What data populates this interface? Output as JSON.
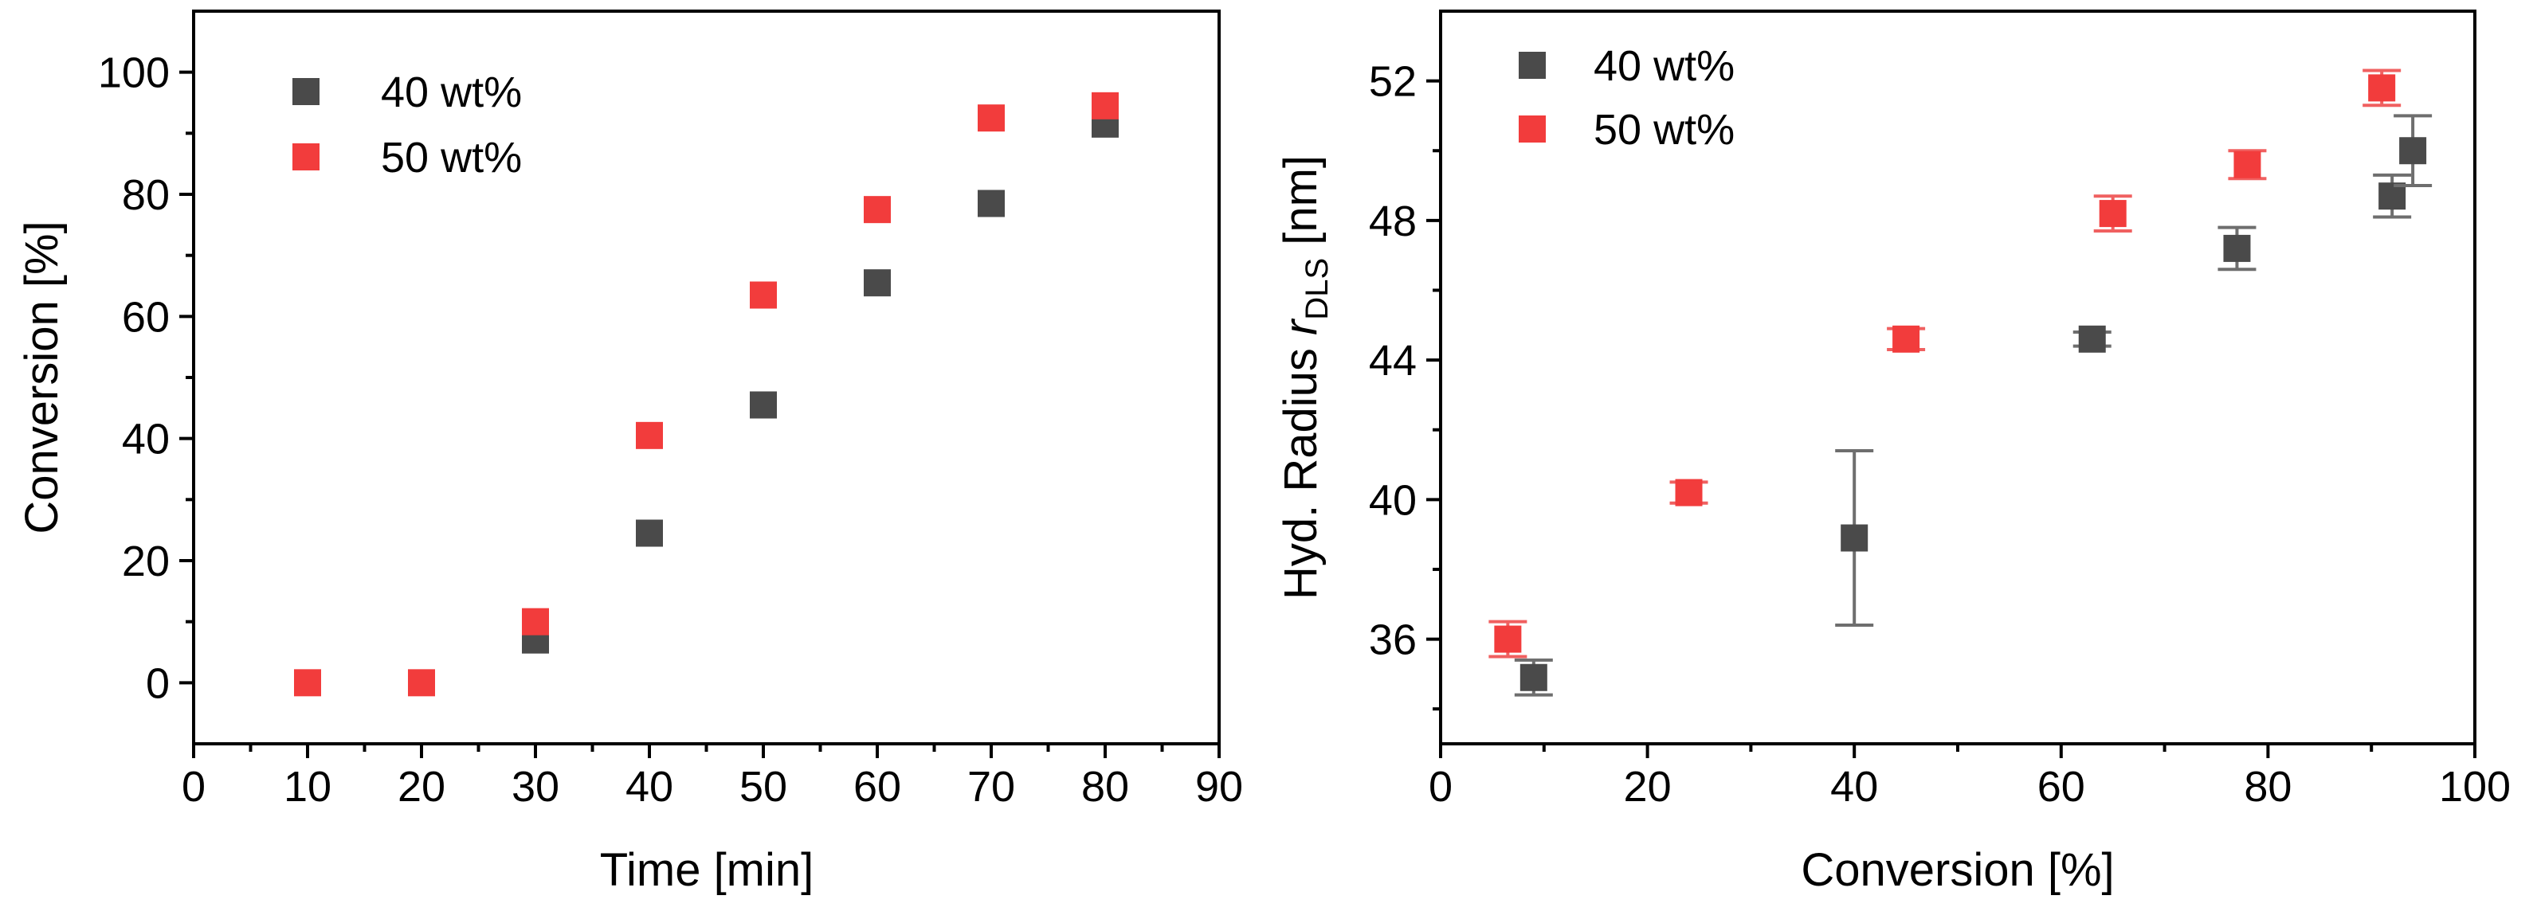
{
  "chart_data": [
    {
      "type": "scatter",
      "title": "",
      "xlabel": "Time [min]",
      "ylabel": "Conversion [%]",
      "xlim": [
        0,
        90
      ],
      "ylim": [
        -10,
        110
      ],
      "xticks": [
        0,
        10,
        20,
        30,
        40,
        50,
        60,
        70,
        80,
        90
      ],
      "yticks": [
        0,
        20,
        40,
        60,
        80,
        100
      ],
      "xtick_labels": [
        "0",
        "10",
        "20",
        "30",
        "40",
        "50",
        "60",
        "70",
        "80",
        "90"
      ],
      "ytick_labels": [
        "0",
        "20",
        "40",
        "60",
        "80",
        "100"
      ],
      "grid": false,
      "legend": "top-left",
      "series": [
        {
          "name": "40 wt%",
          "color": "#4a4a4a",
          "x": [
            30,
            40,
            50,
            60,
            70,
            80
          ],
          "y": [
            7,
            24.5,
            45.5,
            65.5,
            78.5,
            91.5
          ]
        },
        {
          "name": "50 wt%",
          "color": "#f23c3c",
          "x": [
            10,
            20,
            30,
            40,
            50,
            60,
            70,
            80
          ],
          "y": [
            0,
            0,
            10,
            40.5,
            63.5,
            77.5,
            92.5,
            94.5
          ]
        }
      ]
    },
    {
      "type": "scatter",
      "title": "",
      "xlabel": "Conversion [%]",
      "ylabel_main": "Hyd. Radius ",
      "ylabel_symbol": "r",
      "ylabel_subscript": "DLS",
      "ylabel_unit": " [nm]",
      "xlim": [
        0,
        100
      ],
      "ylim": [
        33,
        54
      ],
      "xticks": [
        0,
        20,
        40,
        60,
        80,
        100
      ],
      "yticks": [
        36,
        40,
        44,
        48,
        52
      ],
      "xtick_labels": [
        "0",
        "20",
        "40",
        "60",
        "80",
        "100"
      ],
      "ytick_labels": [
        "36",
        "40",
        "44",
        "48",
        "52"
      ],
      "grid": false,
      "legend": "top-left",
      "series": [
        {
          "name": "40 wt%",
          "color": "#4a4a4a",
          "error_color": "#6e6e6e",
          "x": [
            9,
            40,
            63,
            77,
            92,
            94
          ],
          "y": [
            34.9,
            38.9,
            44.6,
            47.2,
            48.7,
            50.0
          ],
          "yerr": [
            0.5,
            2.5,
            0.2,
            0.6,
            0.6,
            1.0
          ]
        },
        {
          "name": "50 wt%",
          "color": "#f23c3c",
          "error_color": "#f06060",
          "x": [
            6.5,
            24,
            45,
            65,
            78,
            91
          ],
          "y": [
            36.0,
            40.2,
            44.6,
            48.2,
            49.6,
            51.8
          ],
          "yerr": [
            0.5,
            0.3,
            0.3,
            0.5,
            0.4,
            0.5
          ]
        }
      ]
    }
  ]
}
